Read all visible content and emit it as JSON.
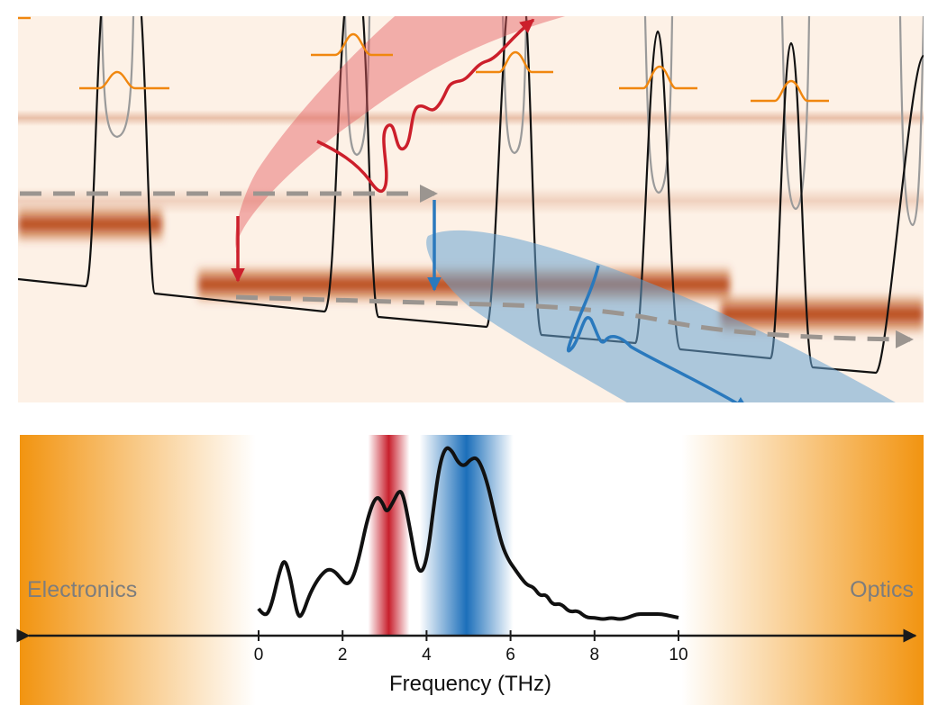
{
  "top_panel": {
    "background_color": "#fdf1e6",
    "band_color": "#b5410b",
    "red_beam_color": "#e55a5f",
    "blue_beam_color": "#6aa4d2",
    "red_arrow_color": "#cc1f2b",
    "blue_arrow_color": "#2a79bd",
    "gray_arrow_color": "#9b9590",
    "potential_color": "#111111",
    "gaussian_color": "#f0870f"
  },
  "bottom_panel": {
    "left_label": "Electronics",
    "right_label": "Optics",
    "orange_color": "#f29410",
    "red_band_color": "#c8202d",
    "blue_band_color": "#1c6fba"
  },
  "chart_data": {
    "type": "line",
    "xlabel": "Frequency (THz)",
    "ylabel": "",
    "xlim": [
      0,
      10
    ],
    "x_ticks": [
      "0",
      "2",
      "4",
      "6",
      "8",
      "10"
    ],
    "series": [
      {
        "x": [
          0.0,
          0.15,
          0.3,
          0.5,
          0.62,
          0.75,
          0.85,
          0.95,
          1.05,
          1.2,
          1.35,
          1.5,
          1.65,
          1.8,
          1.95,
          2.1,
          2.25,
          2.4,
          2.6,
          2.8,
          2.95,
          3.05,
          3.2,
          3.35,
          3.45,
          3.6,
          3.75,
          3.85,
          3.95,
          4.05,
          4.15,
          4.3,
          4.45,
          4.6,
          4.75,
          4.9,
          5.05,
          5.2,
          5.35,
          5.5,
          5.65,
          5.8,
          5.95,
          6.1,
          6.25,
          6.4,
          6.55,
          6.7,
          6.85,
          7.0,
          7.2,
          7.4,
          7.6,
          7.8,
          8.0,
          8.2,
          8.4,
          8.6,
          8.8,
          9.0,
          9.2,
          9.4,
          9.6,
          9.8,
          10.0
        ],
        "y": [
          0.07,
          0.02,
          0.08,
          0.28,
          0.35,
          0.25,
          0.12,
          0.02,
          0.04,
          0.14,
          0.21,
          0.26,
          0.29,
          0.28,
          0.24,
          0.2,
          0.24,
          0.36,
          0.58,
          0.7,
          0.66,
          0.6,
          0.66,
          0.73,
          0.7,
          0.52,
          0.32,
          0.27,
          0.3,
          0.41,
          0.6,
          0.86,
          0.97,
          0.95,
          0.88,
          0.86,
          0.9,
          0.91,
          0.84,
          0.72,
          0.56,
          0.42,
          0.34,
          0.29,
          0.24,
          0.2,
          0.19,
          0.14,
          0.15,
          0.09,
          0.1,
          0.05,
          0.06,
          0.02,
          0.02,
          0.01,
          0.02,
          0.01,
          0.02,
          0.04,
          0.04,
          0.04,
          0.04,
          0.03,
          0.02
        ]
      }
    ],
    "highlight_bands": [
      {
        "center": 3.1,
        "color": "#c8202d"
      },
      {
        "center": 4.95,
        "color": "#1c6fba"
      }
    ],
    "grid": false
  }
}
